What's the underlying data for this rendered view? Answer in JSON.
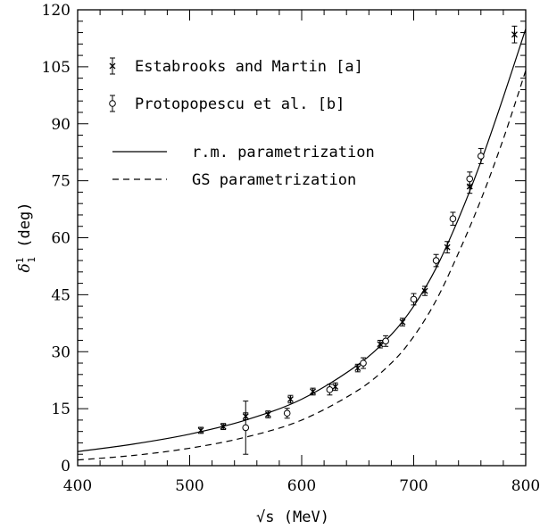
{
  "chart_data": {
    "type": "scatter",
    "xlabel": "√s (MeV)",
    "ylabel": "δ¹₁ (deg)",
    "ylabel_parts": {
      "base": "δ",
      "sup": "1",
      "sub": "1",
      "rest": " (deg)"
    },
    "xlim": [
      400,
      800
    ],
    "ylim": [
      0,
      120
    ],
    "x_ticks": [
      400,
      500,
      600,
      700,
      800
    ],
    "y_ticks": [
      0,
      15,
      30,
      45,
      60,
      75,
      90,
      105,
      120
    ],
    "grid": false,
    "legend_position": "top-left",
    "series": [
      {
        "name": "Estabrooks and Martin [a]",
        "kind": "points",
        "marker": "star",
        "x": [
          510,
          530,
          550,
          570,
          590,
          610,
          630,
          650,
          670,
          690,
          710,
          730,
          750,
          790
        ],
        "y": [
          9.3,
          10.3,
          13.0,
          13.5,
          17.5,
          19.5,
          20.8,
          25.7,
          32.0,
          37.8,
          46.0,
          57.5,
          73.5,
          113.5
        ],
        "err": [
          0.8,
          0.8,
          0.9,
          0.9,
          1.0,
          0.9,
          1.0,
          1.0,
          1.0,
          1.0,
          1.2,
          1.5,
          1.8,
          2.2
        ]
      },
      {
        "name": "Protopopescu et al. [b]",
        "kind": "points",
        "marker": "circle",
        "x": [
          550,
          587,
          625,
          655,
          675,
          700,
          720,
          735,
          750,
          760
        ],
        "y": [
          10.0,
          13.8,
          20.0,
          27.0,
          32.8,
          43.8,
          54.0,
          65.0,
          75.5,
          81.5
        ],
        "err": [
          7.0,
          1.3,
          1.4,
          1.4,
          1.4,
          1.5,
          1.6,
          1.7,
          1.8,
          2.0
        ]
      },
      {
        "name": "r.m. parametrization",
        "kind": "line",
        "style": "solid",
        "x": [
          400,
          450,
          500,
          550,
          600,
          650,
          680,
          700,
          720,
          740,
          760,
          780,
          800
        ],
        "y": [
          3.7,
          5.7,
          8.3,
          12.0,
          17.5,
          26.5,
          34.5,
          42.0,
          52.0,
          65.0,
          80.0,
          97.0,
          115.0
        ]
      },
      {
        "name": "GS parametrization",
        "kind": "line",
        "style": "dashed",
        "x": [
          400,
          450,
          500,
          550,
          600,
          650,
          680,
          700,
          720,
          740,
          760,
          780,
          800
        ],
        "y": [
          1.5,
          2.7,
          4.6,
          7.5,
          12.0,
          19.8,
          27.0,
          34.0,
          43.5,
          56.0,
          70.0,
          86.0,
          104.0
        ]
      }
    ]
  }
}
